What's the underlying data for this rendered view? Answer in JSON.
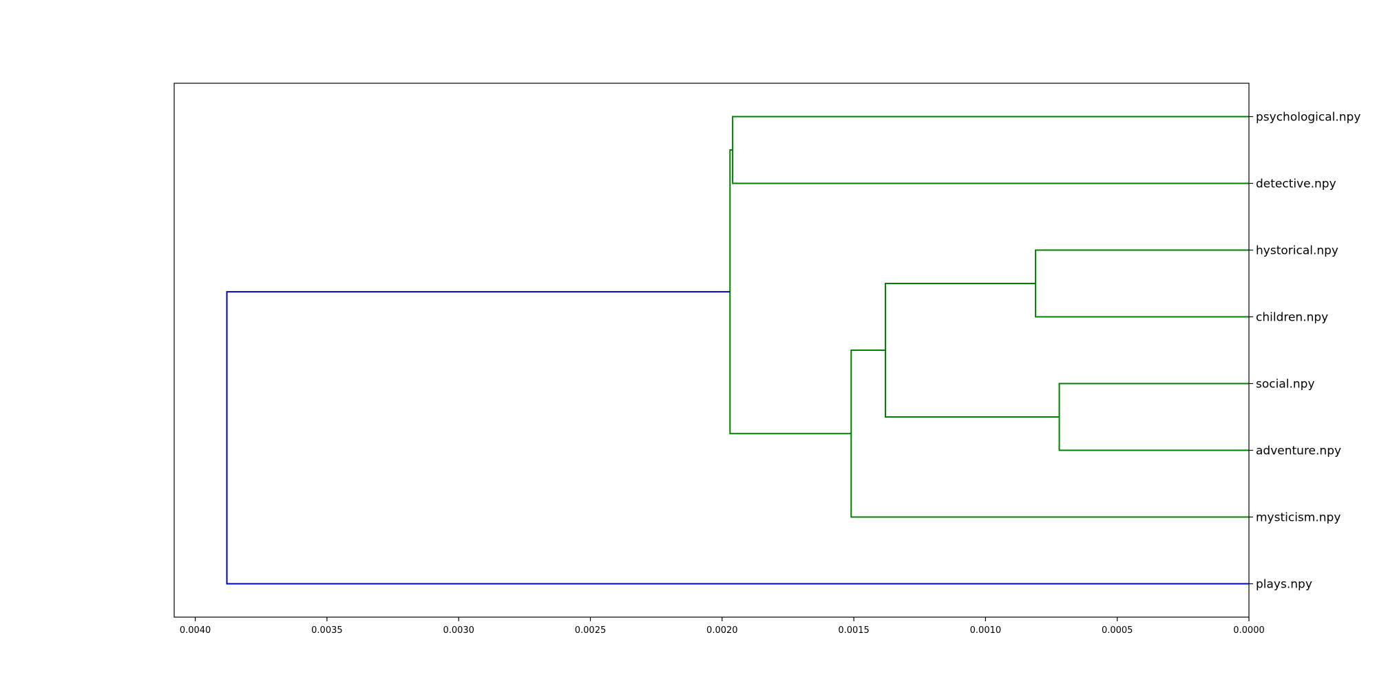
{
  "chart_data": {
    "type": "dendrogram",
    "orientation": "left",
    "title": "",
    "xlabel": "",
    "ylabel": "",
    "xlim": [
      0.00408,
      0.0
    ],
    "x_ticks": [
      "0.0040",
      "0.0035",
      "0.0030",
      "0.0025",
      "0.0020",
      "0.0015",
      "0.0010",
      "0.0005",
      "0.0000"
    ],
    "x_tick_values": [
      0.004,
      0.0035,
      0.003,
      0.0025,
      0.002,
      0.0015,
      0.001,
      0.0005,
      0.0
    ],
    "leaves": [
      "psychological.npy",
      "detective.npy",
      "hystorical.npy",
      "children.npy",
      "social.npy",
      "adventure.npy",
      "mysticism.npy",
      "plays.npy"
    ],
    "merges": [
      {
        "a": "hystorical.npy",
        "b": "children.npy",
        "distance": 0.00081,
        "color": "#008000"
      },
      {
        "a": "social.npy",
        "b": "adventure.npy",
        "distance": 0.00072,
        "color": "#008000"
      },
      {
        "a": 0,
        "b": 1,
        "distance": 0.00138,
        "color": "#008000"
      },
      {
        "a": 2,
        "b": "mysticism.npy",
        "distance": 0.00151,
        "color": "#008000"
      },
      {
        "a": "psychological.npy",
        "b": "detective.npy",
        "distance": 0.00196,
        "color": "#008000"
      },
      {
        "a": 4,
        "b": 3,
        "distance": 0.00197,
        "color": "#008000"
      },
      {
        "a": 5,
        "b": "plays.npy",
        "distance": 0.00388,
        "color": "#0000bf"
      }
    ],
    "grid": false,
    "legend": "none"
  }
}
